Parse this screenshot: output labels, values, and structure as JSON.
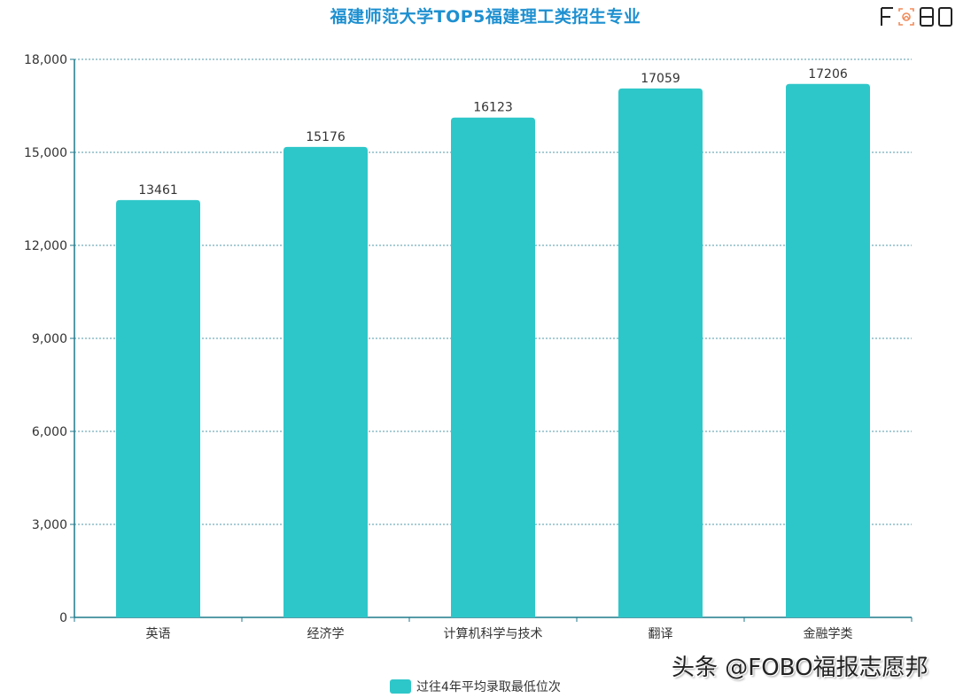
{
  "title": "福建师范大学TOP5福建理工类招生专业",
  "logo": {
    "text_left": "F",
    "text_right": "8O",
    "icon": "fingerprint-icon",
    "accent": "#f08c5a"
  },
  "watermark": "头条 @FOBO福报志愿邦",
  "legend": {
    "label": "过往4年平均录取最低位次",
    "color": "#2ec7c9"
  },
  "colors": {
    "bar": "#2ec7c9",
    "axis": "#1f7a8c",
    "grid": "#4f9aa8",
    "text": "#333333",
    "title": "#1e90d0"
  },
  "chart_data": {
    "type": "bar",
    "title": "福建师范大学TOP5福建理工类招生专业",
    "categories": [
      "英语",
      "经济学",
      "计算机科学与技术",
      "翻译",
      "金融学类"
    ],
    "series": [
      {
        "name": "过往4年平均录取最低位次",
        "values": [
          13461,
          15176,
          16123,
          17059,
          17206
        ]
      }
    ],
    "xlabel": "",
    "ylabel": "",
    "ylim": [
      0,
      18000
    ],
    "yticks": [
      0,
      3000,
      6000,
      9000,
      12000,
      15000,
      18000
    ],
    "ytick_labels": [
      "0",
      "3,000",
      "6,000",
      "9,000",
      "12,000",
      "15,000",
      "18,000"
    ],
    "grid": true,
    "legend_position": "bottom"
  }
}
